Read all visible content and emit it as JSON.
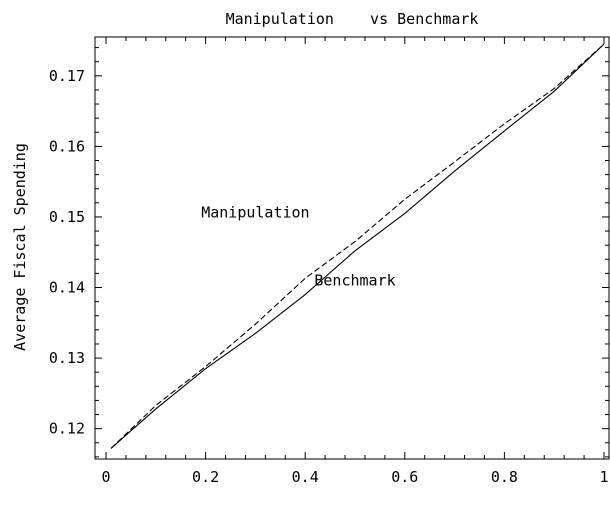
{
  "chart_data": {
    "type": "line",
    "title": "Manipulation    vs Benchmark",
    "xlabel": "",
    "ylabel": "Average Fiscal Spending",
    "xlim": [
      0,
      1
    ],
    "ylim": [
      0.1157,
      0.1755
    ],
    "x_ticks": [
      0,
      0.2,
      0.4,
      0.6,
      0.8,
      1
    ],
    "x_tick_labels": [
      "0",
      "0.2",
      "0.4",
      "0.6",
      "0.8",
      "1"
    ],
    "y_ticks": [
      0.12,
      0.13,
      0.14,
      0.15,
      0.16,
      0.17
    ],
    "y_tick_labels": [
      "0.12",
      "0.13",
      "0.14",
      "0.15",
      "0.16",
      "0.17"
    ],
    "grid": false,
    "legend": "none",
    "series": [
      {
        "name": "Manipulation",
        "style": "dashed",
        "x": [
          0.01,
          0.1,
          0.2,
          0.3,
          0.4,
          0.5,
          0.6,
          0.7,
          0.8,
          0.9,
          1.0
        ],
        "y": [
          0.1172,
          0.1233,
          0.1288,
          0.1348,
          0.1413,
          0.1465,
          0.1525,
          0.1578,
          0.1632,
          0.1682,
          0.1745
        ]
      },
      {
        "name": "Benchmark",
        "style": "solid",
        "x": [
          0.01,
          0.1,
          0.2,
          0.3,
          0.4,
          0.5,
          0.6,
          0.7,
          0.8,
          0.9,
          1.0
        ],
        "y": [
          0.1172,
          0.1228,
          0.1285,
          0.1335,
          0.139,
          0.1452,
          0.1505,
          0.1565,
          0.1622,
          0.1678,
          0.1745
        ]
      }
    ],
    "annotations": [
      {
        "text": "Manipulation",
        "x": 0.3,
        "y": 0.1499
      },
      {
        "text": "Benchmark",
        "x": 0.5,
        "y": 0.1403
      }
    ]
  }
}
